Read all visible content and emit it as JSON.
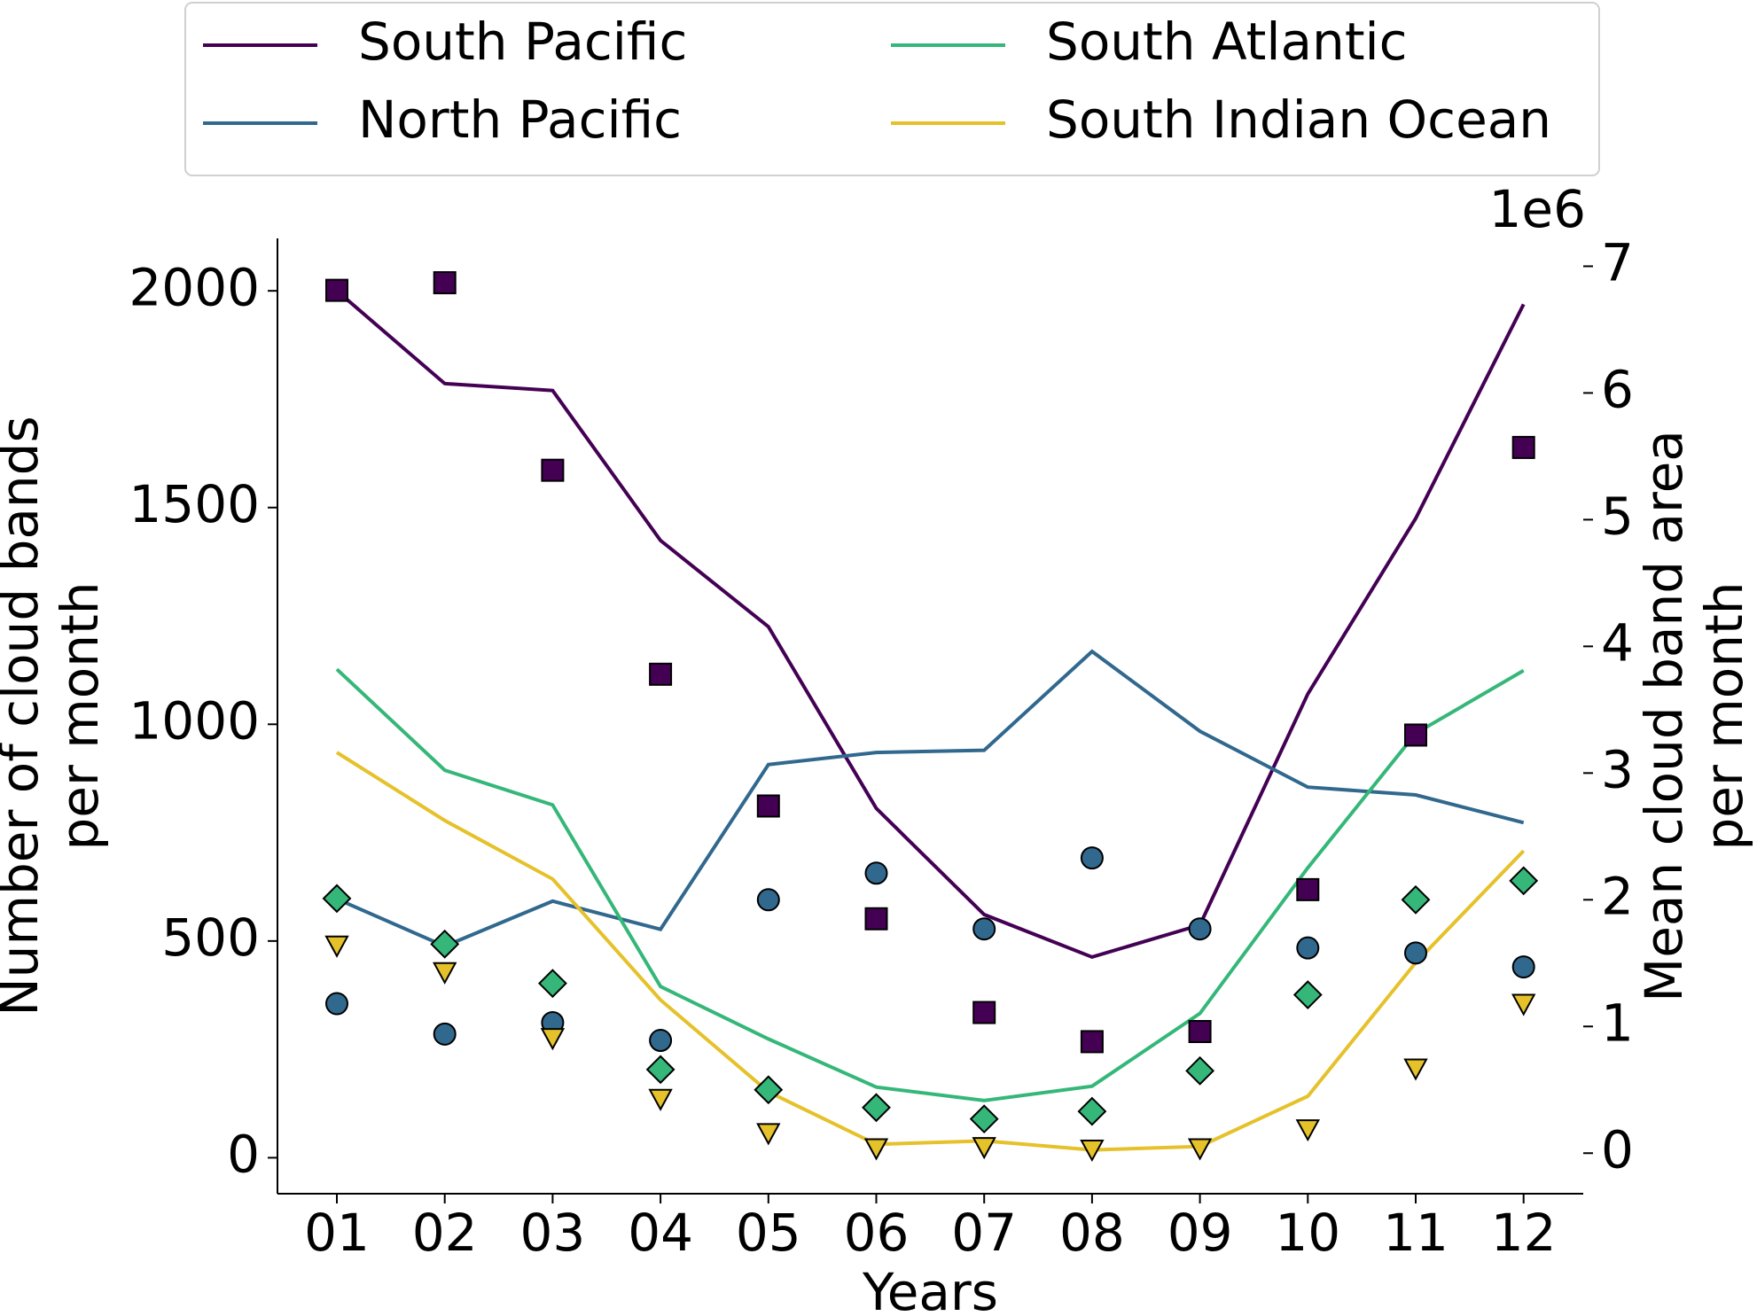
{
  "chart_data": {
    "type": "line",
    "categories": [
      "01",
      "02",
      "03",
      "04",
      "05",
      "06",
      "07",
      "08",
      "09",
      "10",
      "11",
      "12"
    ],
    "xlabel": "Years",
    "ylabel": [
      "Number of cloud bands",
      "per month"
    ],
    "y2label": [
      "Mean cloud band area",
      "per month"
    ],
    "y2_offset_label": "1e6",
    "ylim": [
      -83,
      2121
    ],
    "yticks": [
      0,
      500,
      1000,
      1500,
      2000
    ],
    "y2lim": [
      -0.32,
      7.22
    ],
    "y2ticks": [
      0,
      1,
      2,
      3,
      4,
      5,
      6,
      7
    ],
    "legend": "top",
    "series": [
      {
        "name": "South Pacific",
        "color": "#440154",
        "values": [
          2000,
          1786,
          1770,
          1424,
          1225,
          806,
          561,
          463,
          537,
          1070,
          1475,
          1969
        ]
      },
      {
        "name": "North Pacific",
        "color": "#31688e",
        "values": [
          597,
          488,
          592,
          527,
          907,
          935,
          940,
          1168,
          984,
          855,
          837,
          773
        ]
      },
      {
        "name": "South Atlantic",
        "color": "#35b779",
        "values": [
          1127,
          894,
          814,
          395,
          274,
          163,
          132,
          165,
          333,
          669,
          979,
          1124
        ]
      },
      {
        "name": "South Indian Ocean",
        "color": "#e5c12a",
        "values": [
          935,
          778,
          643,
          364,
          152,
          31,
          39,
          18,
          26,
          142,
          450,
          708
        ]
      },
      {
        "axis": "y2",
        "marker": "square",
        "color": "#440154",
        "values": [
          6.81,
          6.87,
          5.39,
          3.78,
          2.74,
          1.85,
          1.11,
          0.88,
          0.96,
          2.08,
          3.3,
          5.57
        ]
      },
      {
        "axis": "y2",
        "marker": "circle",
        "color": "#31688e",
        "values": [
          1.18,
          0.94,
          1.03,
          0.89,
          2.0,
          2.21,
          1.77,
          2.33,
          1.77,
          1.62,
          1.58,
          1.47
        ]
      },
      {
        "axis": "y2",
        "marker": "diamond",
        "color": "#35b779",
        "values": [
          2.01,
          1.65,
          1.34,
          0.66,
          0.5,
          0.36,
          0.27,
          0.33,
          0.65,
          1.25,
          2.0,
          2.15
        ]
      },
      {
        "axis": "y2",
        "marker": "triangle-down",
        "color": "#e5c12a",
        "values": [
          1.64,
          1.43,
          0.91,
          0.43,
          0.16,
          0.04,
          0.05,
          0.03,
          0.04,
          0.19,
          0.67,
          1.18
        ]
      }
    ]
  }
}
